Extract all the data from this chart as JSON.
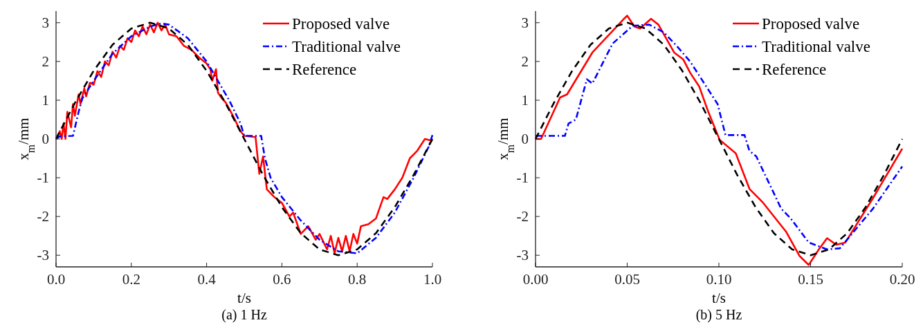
{
  "chart_data": [
    {
      "type": "line",
      "title": "(a) 1 Hz",
      "xlabel": "t/s",
      "ylabel": "x$_{m}$/mm",
      "xlim": [
        0,
        1
      ],
      "xticks": [
        {
          "value": 0,
          "label": "0.0"
        },
        0.2,
        0.4,
        0.6,
        0.8,
        {
          "value": 1,
          "label": "1.0"
        }
      ],
      "ylim": [
        -3.3,
        3.3
      ],
      "yticks": [
        -3,
        -2,
        -1,
        0,
        1,
        2,
        3
      ],
      "legend": "top right",
      "grid": false,
      "series": [
        {
          "name": "Proposed valve",
          "color": "#ff0000",
          "line_style": "solid",
          "x": [
            0,
            0.01,
            0.015,
            0.02,
            0.025,
            0.03,
            0.035,
            0.04,
            0.045,
            0.05,
            0.06,
            0.065,
            0.075,
            0.08,
            0.09,
            0.1,
            0.11,
            0.12,
            0.13,
            0.14,
            0.15,
            0.16,
            0.17,
            0.18,
            0.19,
            0.2,
            0.21,
            0.22,
            0.23,
            0.24,
            0.25,
            0.26,
            0.27,
            0.28,
            0.29,
            0.3,
            0.32,
            0.34,
            0.36,
            0.38,
            0.4,
            0.41,
            0.415,
            0.425,
            0.43,
            0.44,
            0.45,
            0.47,
            0.49,
            0.5,
            0.53,
            0.54,
            0.55,
            0.56,
            0.58,
            0.6,
            0.62,
            0.63,
            0.65,
            0.67,
            0.69,
            0.7,
            0.72,
            0.73,
            0.74,
            0.75,
            0.76,
            0.77,
            0.78,
            0.79,
            0.8,
            0.81,
            0.83,
            0.85,
            0.87,
            0.88,
            0.9,
            0.92,
            0.94,
            0.96,
            0.98,
            1.0
          ],
          "values": [
            0,
            0.2,
            0,
            0.4,
            0,
            0.7,
            0.5,
            0.3,
            0.9,
            0.6,
            1.15,
            0.9,
            1.3,
            1.1,
            1.45,
            1.4,
            1.75,
            1.6,
            2.0,
            1.9,
            2.25,
            2.1,
            2.4,
            2.3,
            2.6,
            2.5,
            2.8,
            2.65,
            2.9,
            2.7,
            2.95,
            2.75,
            3.0,
            2.8,
            2.95,
            2.7,
            2.65,
            2.4,
            2.3,
            2.1,
            1.95,
            1.8,
            1.5,
            1.8,
            1.2,
            1.05,
            0.95,
            0.6,
            0.2,
            0.08,
            0.05,
            -0.9,
            -0.45,
            -1.3,
            -1.5,
            -1.65,
            -2.0,
            -1.9,
            -2.45,
            -2.25,
            -2.6,
            -2.45,
            -2.85,
            -2.5,
            -2.95,
            -2.55,
            -2.9,
            -2.5,
            -2.9,
            -2.45,
            -2.7,
            -2.25,
            -2.2,
            -2.05,
            -1.5,
            -1.55,
            -1.3,
            -1.0,
            -0.5,
            -0.3,
            0.0,
            -0.05
          ]
        },
        {
          "name": "Traditional valve",
          "color": "#0000ff",
          "line_style": "dashdot",
          "x": [
            0,
            0.01,
            0.045,
            0.06,
            0.07,
            0.08,
            0.1,
            0.15,
            0.2,
            0.25,
            0.28,
            0.3,
            0.35,
            0.4,
            0.43,
            0.46,
            0.49,
            0.5,
            0.545,
            0.555,
            0.57,
            0.6,
            0.65,
            0.7,
            0.75,
            0.8,
            0.85,
            0.9,
            0.95,
            0.99,
            1.0
          ],
          "values": [
            0,
            0.07,
            0.08,
            0.7,
            1.05,
            1.2,
            1.5,
            2.2,
            2.65,
            2.9,
            2.98,
            2.95,
            2.6,
            2.0,
            1.5,
            1.0,
            0.4,
            0.08,
            0.08,
            -0.5,
            -1.0,
            -1.5,
            -2.1,
            -2.6,
            -2.9,
            -2.95,
            -2.55,
            -1.9,
            -1.0,
            -0.2,
            0.1
          ]
        },
        {
          "name": "Reference",
          "color": "#000000",
          "line_style": "dashed",
          "x": [
            0,
            0.05,
            0.1,
            0.15,
            0.2,
            0.25,
            0.3,
            0.35,
            0.4,
            0.45,
            0.5,
            0.55,
            0.6,
            0.65,
            0.7,
            0.75,
            0.8,
            0.85,
            0.9,
            0.95,
            1.0
          ],
          "values": [
            0,
            0.93,
            1.76,
            2.43,
            2.85,
            3,
            2.85,
            2.43,
            1.76,
            0.93,
            0,
            -0.93,
            -1.76,
            -2.43,
            -2.85,
            -3,
            -2.85,
            -2.43,
            -1.76,
            -0.93,
            0
          ]
        }
      ]
    },
    {
      "type": "line",
      "title": "(b) 5 Hz",
      "xlabel": "t/s",
      "ylabel": "x$_{m}$/mm",
      "xlim": [
        0,
        0.2
      ],
      "xticks": [
        {
          "value": 0,
          "label": "0.00"
        },
        0.05,
        {
          "value": 0.1,
          "label": "0.10"
        },
        0.15,
        {
          "value": 0.2,
          "label": "0.20"
        }
      ],
      "ylim": [
        -3.3,
        3.3
      ],
      "yticks": [
        -3,
        -2,
        -1,
        0,
        1,
        2,
        3
      ],
      "legend": "top right",
      "grid": false,
      "series": [
        {
          "name": "Proposed valve",
          "color": "#ff0000",
          "line_style": "solid",
          "x": [
            0,
            0.003,
            0.0134,
            0.0172,
            0.031,
            0.048,
            0.05,
            0.054,
            0.057,
            0.063,
            0.067,
            0.0756,
            0.0806,
            0.0843,
            0.0893,
            0.0943,
            0.1004,
            0.1092,
            0.1167,
            0.124,
            0.1366,
            0.144,
            0.149,
            0.1545,
            0.159,
            0.164,
            0.169,
            0.184,
            0.2
          ],
          "values": [
            0,
            0,
            1.07,
            1.15,
            2.23,
            3.09,
            3.18,
            2.9,
            2.85,
            3.1,
            2.95,
            2.23,
            2.05,
            1.71,
            1.35,
            0.69,
            -0.02,
            -0.37,
            -1.29,
            -1.64,
            -2.39,
            -3.02,
            -3.25,
            -2.85,
            -2.56,
            -2.73,
            -2.67,
            -1.53,
            -0.25
          ]
        },
        {
          "name": "Traditional valve",
          "color": "#0000ff",
          "line_style": "dashdot",
          "x": [
            0,
            0.016,
            0.018,
            0.022,
            0.028,
            0.031,
            0.042,
            0.053,
            0.062,
            0.07,
            0.077,
            0.0843,
            0.0993,
            0.1036,
            0.114,
            0.1166,
            0.1204,
            0.134,
            0.139,
            0.149,
            0.159,
            0.166,
            0.184,
            0.2
          ],
          "values": [
            0.08,
            0.08,
            0.4,
            0.5,
            1.54,
            1.43,
            2.46,
            2.92,
            2.95,
            2.75,
            2.4,
            2.0,
            0.9,
            0.1,
            0.1,
            -0.3,
            -0.45,
            -1.8,
            -2.04,
            -2.67,
            -2.85,
            -2.82,
            -1.8,
            -0.71
          ]
        },
        {
          "name": "Reference",
          "color": "#000000",
          "line_style": "dashed",
          "x": [
            0,
            0.01,
            0.02,
            0.03,
            0.04,
            0.05,
            0.06,
            0.07,
            0.08,
            0.09,
            0.1,
            0.11,
            0.12,
            0.13,
            0.14,
            0.15,
            0.16,
            0.17,
            0.18,
            0.19,
            0.2
          ],
          "values": [
            0,
            0.93,
            1.76,
            2.43,
            2.85,
            3,
            2.85,
            2.43,
            1.76,
            0.93,
            0,
            -0.93,
            -1.76,
            -2.43,
            -2.85,
            -3,
            -2.85,
            -2.43,
            -1.76,
            -0.93,
            0
          ]
        }
      ]
    }
  ]
}
